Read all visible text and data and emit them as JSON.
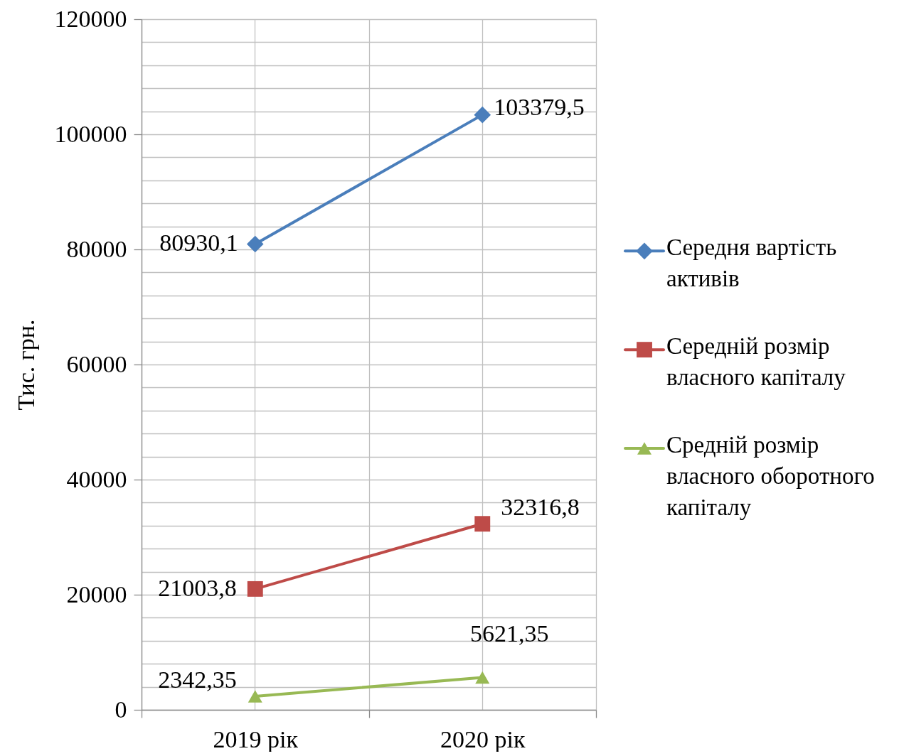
{
  "chart_data": {
    "type": "line",
    "ylabel": "Тис. грн.",
    "categories": [
      "2019 рік",
      "2020 рік"
    ],
    "series": [
      {
        "name": "Середня вартість активів",
        "color": "#4a7ebb",
        "marker": "diamond",
        "values": [
          80930.1,
          103379.5
        ],
        "value_labels": [
          "80930,1",
          "103379,5"
        ]
      },
      {
        "name": "Середній розмір власного капіталу",
        "color": "#be4b48",
        "marker": "square",
        "values": [
          21003.8,
          32316.8
        ],
        "value_labels": [
          "21003,8",
          "32316,8"
        ]
      },
      {
        "name": "Средній розмір власного оборотного капіталу",
        "color": "#98b954",
        "marker": "triangle",
        "values": [
          2342.35,
          5621.35
        ],
        "value_labels": [
          "2342,35",
          "5621,35"
        ]
      }
    ],
    "ylim": [
      0,
      120000
    ],
    "yticks": [
      0,
      {
        "value": 4000,
        "label": null
      },
      {
        "value": 8000,
        "label": null
      },
      {
        "value": 12000,
        "label": null
      },
      {
        "value": 16000,
        "label": null
      },
      20000,
      {
        "value": 24000,
        "label": null
      },
      {
        "value": 28000,
        "label": null
      },
      {
        "value": 32000,
        "label": null
      },
      {
        "value": 36000,
        "label": null
      },
      40000,
      {
        "value": 44000,
        "label": null
      },
      {
        "value": 48000,
        "label": null
      },
      {
        "value": 52000,
        "label": null
      },
      {
        "value": 56000,
        "label": null
      },
      60000,
      {
        "value": 64000,
        "label": null
      },
      {
        "value": 68000,
        "label": null
      },
      {
        "value": 72000,
        "label": null
      },
      {
        "value": 76000,
        "label": null
      },
      80000,
      {
        "value": 84000,
        "label": null
      },
      {
        "value": 88000,
        "label": null
      },
      {
        "value": 92000,
        "label": null
      },
      {
        "value": 96000,
        "label": null
      },
      100000,
      {
        "value": 104000,
        "label": null
      },
      {
        "value": 108000,
        "label": null
      },
      {
        "value": 112000,
        "label": null
      },
      {
        "value": 116000,
        "label": null
      },
      120000
    ],
    "grid": true,
    "legend": "right"
  }
}
